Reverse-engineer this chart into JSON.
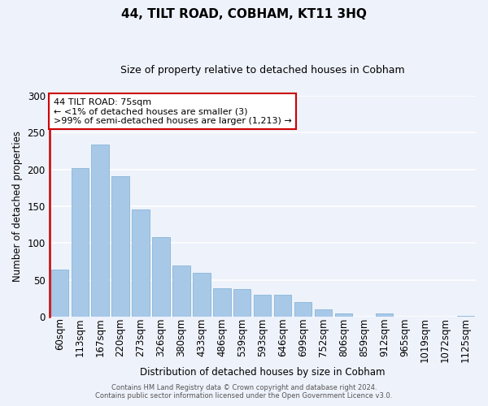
{
  "title": "44, TILT ROAD, COBHAM, KT11 3HQ",
  "subtitle": "Size of property relative to detached houses in Cobham",
  "xlabel": "Distribution of detached houses by size in Cobham",
  "ylabel": "Number of detached properties",
  "bar_labels": [
    "60sqm",
    "113sqm",
    "167sqm",
    "220sqm",
    "273sqm",
    "326sqm",
    "380sqm",
    "433sqm",
    "486sqm",
    "539sqm",
    "593sqm",
    "646sqm",
    "699sqm",
    "752sqm",
    "806sqm",
    "859sqm",
    "912sqm",
    "965sqm",
    "1019sqm",
    "1072sqm",
    "1125sqm"
  ],
  "bar_values": [
    64,
    202,
    234,
    191,
    145,
    108,
    69,
    60,
    39,
    37,
    30,
    30,
    20,
    10,
    4,
    0,
    4,
    0,
    0,
    0,
    1
  ],
  "bar_color": "#a8c8e8",
  "bar_edge_color": "#7aafd0",
  "highlight_color": "#cc0000",
  "annotation_text": "44 TILT ROAD: 75sqm\n← <1% of detached houses are smaller (3)\n>99% of semi-detached houses are larger (1,213) →",
  "annotation_box_color": "#ffffff",
  "annotation_box_edge_color": "#cc0000",
  "ylim": [
    0,
    300
  ],
  "yticks": [
    0,
    50,
    100,
    150,
    200,
    250,
    300
  ],
  "footer_line1": "Contains HM Land Registry data © Crown copyright and database right 2024.",
  "footer_line2": "Contains public sector information licensed under the Open Government Licence v3.0.",
  "background_color": "#eef2fb",
  "grid_color": "#ffffff",
  "title_fontsize": 11,
  "subtitle_fontsize": 9,
  "axis_label_fontsize": 8.5,
  "tick_fontsize": 8.5,
  "annotation_fontsize": 8
}
